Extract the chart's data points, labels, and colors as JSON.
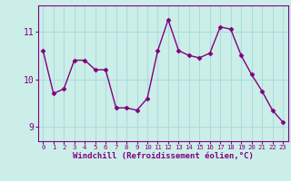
{
  "x": [
    0,
    1,
    2,
    3,
    4,
    5,
    6,
    7,
    8,
    9,
    10,
    11,
    12,
    13,
    14,
    15,
    16,
    17,
    18,
    19,
    20,
    21,
    22,
    23
  ],
  "y": [
    10.6,
    9.7,
    9.8,
    10.4,
    10.4,
    10.2,
    10.2,
    9.4,
    9.4,
    9.35,
    9.6,
    10.6,
    11.25,
    10.6,
    10.5,
    10.45,
    10.55,
    11.1,
    11.05,
    10.5,
    10.1,
    9.75,
    9.35,
    9.1
  ],
  "line_color": "#800080",
  "marker": "D",
  "marker_size": 2.5,
  "bg_color": "#cceee8",
  "grid_color": "#aadddd",
  "xlabel": "Windchill (Refroidissement éolien,°C)",
  "xlabel_color": "#800080",
  "tick_color": "#800080",
  "ylim": [
    8.7,
    11.55
  ],
  "xlim": [
    -0.5,
    23.5
  ],
  "yticks": [
    9,
    10,
    11
  ],
  "xticks": [
    0,
    1,
    2,
    3,
    4,
    5,
    6,
    7,
    8,
    9,
    10,
    11,
    12,
    13,
    14,
    15,
    16,
    17,
    18,
    19,
    20,
    21,
    22,
    23
  ]
}
